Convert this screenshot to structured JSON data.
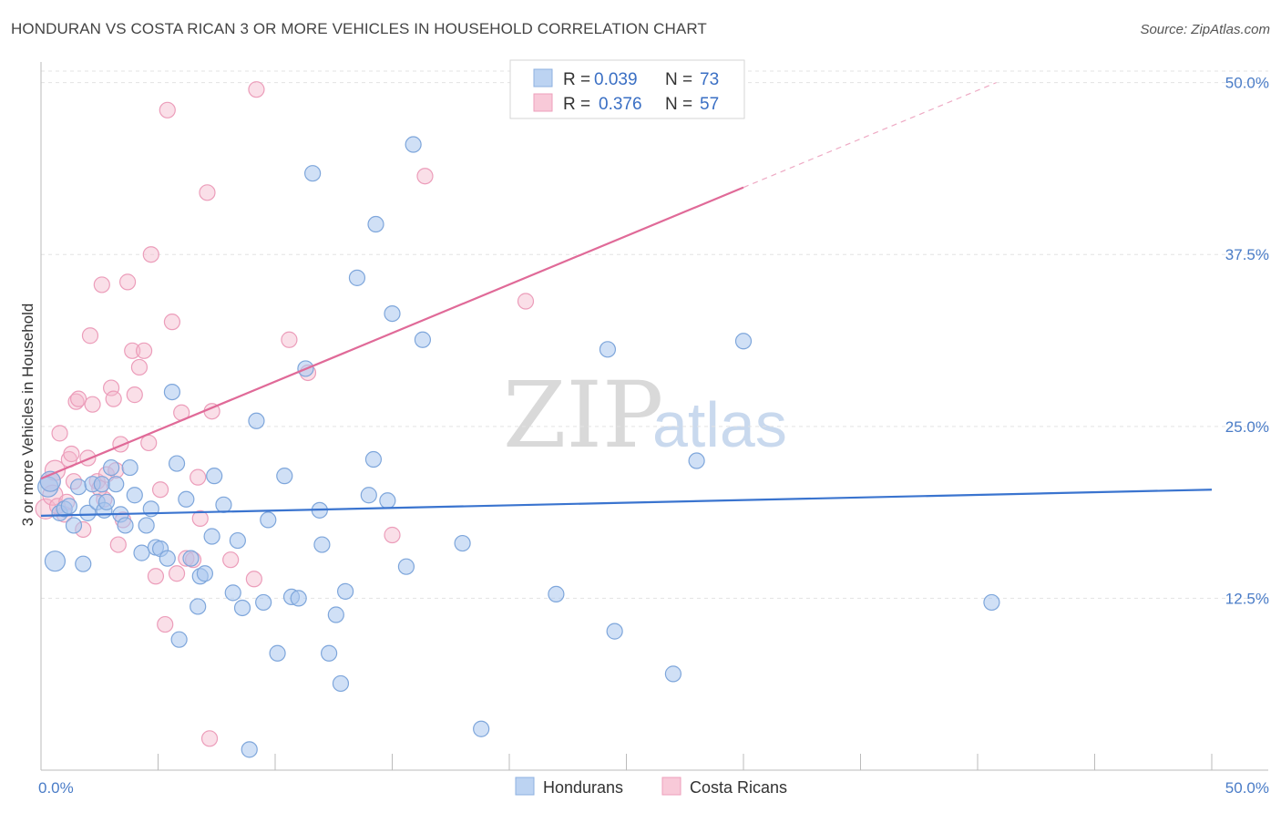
{
  "title": "HONDURAN VS COSTA RICAN 3 OR MORE VEHICLES IN HOUSEHOLD CORRELATION CHART",
  "source": "Source: ZipAtlas.com",
  "colors": {
    "blue": "#3a74cf",
    "blue_fill": "#a9c7ee",
    "pink": "#e06a98",
    "pink_fill": "#f5b8cc",
    "tick": "#4a7cc7",
    "grid": "#dddddd"
  },
  "legend": {
    "rows": [
      {
        "r_label": "R =",
        "r_value": "0.039",
        "n_label": "N =",
        "n_value": "73"
      },
      {
        "r_label": "R =",
        "r_value": "0.376",
        "n_label": "N =",
        "n_value": "57"
      }
    ]
  },
  "bottom_legend": [
    "Hondurans",
    "Costa Ricans"
  ],
  "watermark": {
    "zip": "ZIP",
    "atlas": "atlas"
  },
  "chart_data": {
    "type": "scatter",
    "title": "HONDURAN VS COSTA RICAN 3 OR MORE VEHICLES IN HOUSEHOLD CORRELATION CHART",
    "xlabel": "",
    "ylabel": "3 or more Vehicles in Household",
    "xlim": [
      0,
      50
    ],
    "ylim": [
      0,
      51.5
    ],
    "x_tick_labels": [
      "0.0%",
      "50.0%"
    ],
    "y_ticks": [
      12.5,
      25.0,
      37.5,
      50.0
    ],
    "y_tick_labels": [
      "12.5%",
      "25.0%",
      "37.5%",
      "50.0%"
    ],
    "grid": true,
    "legend_position": "top-center",
    "series": [
      {
        "name": "Hondurans",
        "color": "#3a74cf",
        "trend": {
          "x": [
            0,
            50
          ],
          "y": [
            18.5,
            20.4
          ],
          "solid_to": 50
        },
        "points": [
          [
            0.3,
            20.6
          ],
          [
            0.4,
            21.0
          ],
          [
            0.6,
            15.2
          ],
          [
            0.8,
            18.7
          ],
          [
            1.0,
            19.0
          ],
          [
            1.2,
            19.2
          ],
          [
            1.4,
            17.8
          ],
          [
            1.6,
            20.6
          ],
          [
            1.8,
            15.0
          ],
          [
            2.0,
            18.7
          ],
          [
            2.2,
            20.8
          ],
          [
            2.4,
            19.5
          ],
          [
            2.6,
            20.8
          ],
          [
            2.7,
            18.9
          ],
          [
            2.8,
            19.5
          ],
          [
            3.0,
            22.0
          ],
          [
            3.2,
            20.8
          ],
          [
            3.4,
            18.6
          ],
          [
            3.6,
            17.8
          ],
          [
            3.8,
            22.0
          ],
          [
            4.0,
            20.0
          ],
          [
            4.3,
            15.8
          ],
          [
            4.5,
            17.8
          ],
          [
            4.7,
            19.0
          ],
          [
            4.9,
            16.2
          ],
          [
            5.1,
            16.1
          ],
          [
            5.4,
            15.4
          ],
          [
            5.6,
            27.5
          ],
          [
            5.8,
            22.3
          ],
          [
            5.9,
            9.5
          ],
          [
            6.2,
            19.7
          ],
          [
            6.4,
            15.4
          ],
          [
            6.7,
            11.9
          ],
          [
            6.8,
            14.1
          ],
          [
            7.0,
            14.3
          ],
          [
            7.3,
            17.0
          ],
          [
            7.4,
            21.4
          ],
          [
            7.8,
            19.3
          ],
          [
            8.2,
            12.9
          ],
          [
            8.4,
            16.7
          ],
          [
            8.6,
            11.8
          ],
          [
            8.9,
            1.5
          ],
          [
            9.2,
            25.4
          ],
          [
            9.5,
            12.2
          ],
          [
            9.7,
            18.2
          ],
          [
            10.1,
            8.5
          ],
          [
            10.4,
            21.4
          ],
          [
            10.7,
            12.6
          ],
          [
            11.0,
            12.5
          ],
          [
            11.3,
            29.2
          ],
          [
            11.6,
            43.4
          ],
          [
            11.9,
            18.9
          ],
          [
            12.0,
            16.4
          ],
          [
            12.3,
            8.5
          ],
          [
            12.6,
            11.3
          ],
          [
            12.8,
            6.3
          ],
          [
            13.0,
            13.0
          ],
          [
            13.5,
            35.8
          ],
          [
            14.0,
            20.0
          ],
          [
            14.2,
            22.6
          ],
          [
            14.3,
            39.7
          ],
          [
            14.8,
            19.6
          ],
          [
            15.0,
            33.2
          ],
          [
            15.6,
            14.8
          ],
          [
            15.9,
            45.5
          ],
          [
            16.3,
            31.3
          ],
          [
            18.0,
            16.5
          ],
          [
            18.8,
            3.0
          ],
          [
            22.0,
            12.8
          ],
          [
            24.2,
            30.6
          ],
          [
            24.5,
            10.1
          ],
          [
            27.0,
            7.0
          ],
          [
            28.0,
            22.5
          ],
          [
            30.0,
            31.2
          ],
          [
            40.6,
            12.2
          ]
        ]
      },
      {
        "name": "Costa Ricans",
        "color": "#e06a98",
        "trend": {
          "x": [
            0,
            40.8
          ],
          "y": [
            21.2,
            50.0
          ],
          "solid_to": 30
        },
        "points": [
          [
            0.2,
            19.0
          ],
          [
            0.4,
            21.0
          ],
          [
            0.5,
            20.0
          ],
          [
            0.6,
            21.8
          ],
          [
            0.8,
            24.5
          ],
          [
            1.0,
            18.6
          ],
          [
            1.2,
            22.6
          ],
          [
            1.3,
            23.0
          ],
          [
            1.4,
            21.0
          ],
          [
            1.5,
            26.8
          ],
          [
            1.6,
            27.0
          ],
          [
            1.8,
            17.5
          ],
          [
            2.0,
            22.7
          ],
          [
            2.1,
            31.6
          ],
          [
            2.2,
            26.6
          ],
          [
            2.4,
            21.0
          ],
          [
            2.6,
            35.3
          ],
          [
            2.7,
            19.7
          ],
          [
            2.8,
            21.5
          ],
          [
            3.0,
            27.8
          ],
          [
            3.1,
            27.0
          ],
          [
            3.2,
            21.8
          ],
          [
            3.3,
            16.4
          ],
          [
            3.4,
            23.7
          ],
          [
            3.5,
            18.2
          ],
          [
            3.7,
            35.5
          ],
          [
            3.9,
            30.5
          ],
          [
            4.0,
            27.3
          ],
          [
            4.2,
            29.3
          ],
          [
            4.4,
            30.5
          ],
          [
            4.6,
            23.8
          ],
          [
            4.7,
            37.5
          ],
          [
            4.9,
            14.1
          ],
          [
            5.1,
            20.4
          ],
          [
            5.3,
            10.6
          ],
          [
            5.4,
            48.0
          ],
          [
            5.6,
            32.6
          ],
          [
            5.8,
            14.3
          ],
          [
            6.0,
            26.0
          ],
          [
            6.2,
            15.4
          ],
          [
            6.5,
            15.3
          ],
          [
            6.7,
            21.3
          ],
          [
            6.8,
            18.3
          ],
          [
            7.1,
            42.0
          ],
          [
            7.2,
            2.3
          ],
          [
            7.3,
            26.1
          ],
          [
            8.1,
            15.3
          ],
          [
            9.1,
            13.9
          ],
          [
            9.2,
            49.5
          ],
          [
            10.6,
            31.3
          ],
          [
            11.4,
            28.9
          ],
          [
            15.0,
            17.1
          ],
          [
            16.4,
            43.2
          ],
          [
            20.7,
            34.1
          ],
          [
            0.7,
            19.2
          ],
          [
            1.1,
            19.5
          ],
          [
            2.5,
            20.5
          ]
        ]
      }
    ]
  }
}
